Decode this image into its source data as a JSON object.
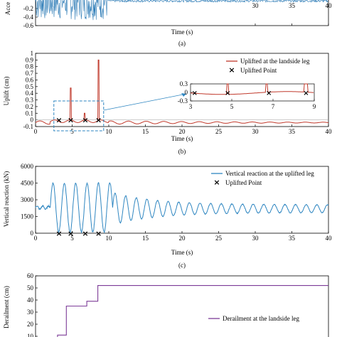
{
  "chart_data": [
    {
      "panel": "a",
      "type": "line",
      "caption": "(a)",
      "xlabel": "Time (s)",
      "ylabel": "Acce",
      "xlim": [
        0,
        40
      ],
      "ylim": [
        -0.6,
        0.1
      ],
      "yticks": [
        "-0.2",
        "-0.4",
        "-0.6"
      ],
      "xticks_visible": [
        "30",
        "35",
        "40"
      ],
      "line_color": "#2c7bb6",
      "series": [
        {
          "values_signal_end_x": 10,
          "peak_abs": 0.45
        }
      ]
    },
    {
      "panel": "b",
      "type": "line",
      "caption": "(b)",
      "xlabel": "Time (s)",
      "ylabel": "Uplift (cm)",
      "xlim": [
        0,
        40
      ],
      "ylim": [
        -0.1,
        1.0
      ],
      "yticks": [
        "1",
        "0.9",
        "0.8",
        "0.7",
        "0.6",
        "0.5",
        "0.4",
        "0.3",
        "0.2",
        "0.1",
        "0",
        "-0.1"
      ],
      "xticks": [
        "0",
        "5",
        "10",
        "15",
        "20",
        "25",
        "30",
        "35",
        "40"
      ],
      "line_color": "#c0392b",
      "legend": [
        "Uplifted at the landside leg",
        "Uplifted Point"
      ],
      "spikes": [
        {
          "x": 4.8,
          "y": 0.48
        },
        {
          "x": 6.7,
          "y": 0.1
        },
        {
          "x": 8.6,
          "y": 0.9
        }
      ],
      "uplift_points_x": [
        3.2,
        4.8,
        6.8,
        8.6
      ],
      "inset": {
        "xlim": [
          3,
          9
        ],
        "ylim": [
          -0.3,
          0.3
        ],
        "xticks": [
          "3",
          "5",
          "7",
          "9"
        ],
        "yticks": [
          "0.3",
          "0",
          "-0.3"
        ]
      }
    },
    {
      "panel": "c",
      "type": "line",
      "caption": "(c)",
      "xlabel": "Time (s)",
      "ylabel": "Vertical reaction (kN)",
      "xlim": [
        0,
        40
      ],
      "ylim": [
        0,
        6000
      ],
      "yticks": [
        "6000",
        "4500",
        "3000",
        "1500",
        "0"
      ],
      "xticks": [
        "0",
        "5",
        "10",
        "15",
        "20",
        "25",
        "30",
        "35",
        "40"
      ],
      "line_color": "#2e86c1",
      "legend": [
        "Vertical reaction at the uplifted leg",
        "Uplifted Point"
      ],
      "uplift_points_x": [
        3.2,
        4.8,
        6.8,
        8.6
      ]
    },
    {
      "panel": "d",
      "type": "line",
      "xlabel": "",
      "ylabel": "Derailment (cm)",
      "xlim": [
        0,
        40
      ],
      "ylim": [
        0,
        60
      ],
      "yticks": [
        "60",
        "50",
        "40",
        "30",
        "20",
        "10"
      ],
      "line_color": "#7d3c98",
      "legend": [
        "Derailment at the landside leg"
      ],
      "steps": [
        {
          "x": 3.0,
          "y": 11
        },
        {
          "x": 4.2,
          "y": 35
        },
        {
          "x": 7.0,
          "y": 39
        },
        {
          "x": 8.5,
          "y": 52
        },
        {
          "x": 40.0,
          "y": 52
        }
      ]
    }
  ]
}
